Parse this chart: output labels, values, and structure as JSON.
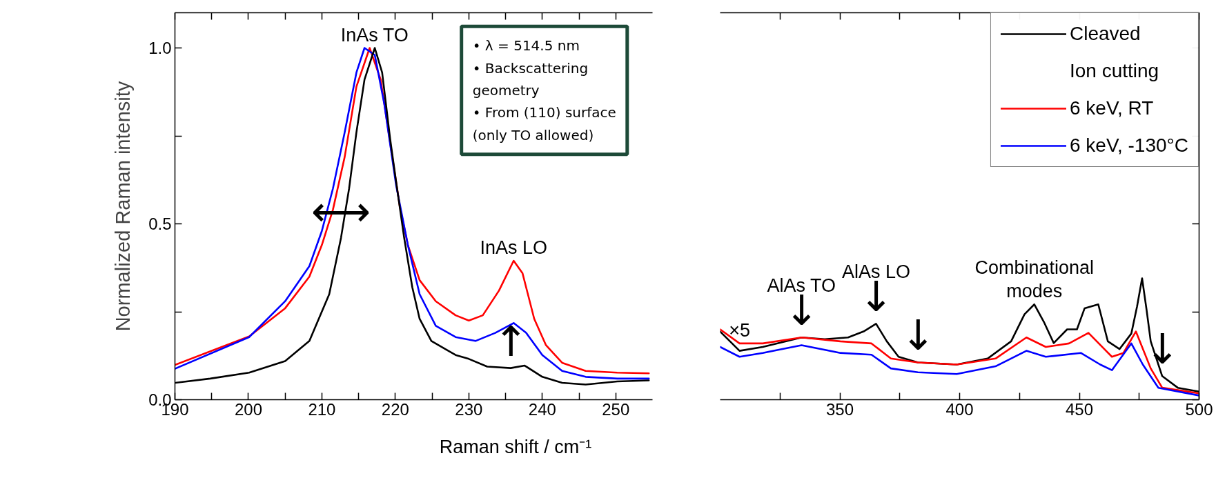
{
  "chart_data": [
    {
      "type": "line",
      "xlabel": "Raman shift / cm⁻¹",
      "ylabel": "Normalized Raman intensity",
      "xlim": [
        190,
        255
      ],
      "ylim": [
        0,
        1.1
      ],
      "xticks": [
        190,
        {
          "value": 195,
          "label": null
        },
        200,
        {
          "value": 205,
          "label": null
        },
        210,
        {
          "value": 215,
          "label": null
        },
        220,
        {
          "value": 225,
          "label": null
        },
        230,
        {
          "value": 235,
          "label": null
        },
        240,
        {
          "value": 245,
          "label": null
        },
        250
      ],
      "yticks": [
        {
          "value": 0,
          "label": "0.0"
        },
        {
          "value": 0.25,
          "label": null
        },
        {
          "value": 0.5,
          "label": "0.5"
        },
        {
          "value": 0.75,
          "label": null
        },
        {
          "value": 1.0,
          "label": "1.0"
        }
      ],
      "series": [
        {
          "color": "#ff0000",
          "x": [
            190,
            200.1,
            205,
            208.3,
            210,
            211.5,
            213.1,
            214.7,
            216.5,
            218,
            219.3,
            220.6,
            221.7,
            223.3,
            225.5,
            228.2,
            230,
            231.9,
            234.1,
            236.1,
            237.3,
            238.9,
            240.5,
            242.7,
            245.9,
            250.2,
            254.5
          ],
          "values": [
            0.099,
            0.18,
            0.26,
            0.35,
            0.44,
            0.54,
            0.69,
            0.89,
            1.0,
            0.91,
            0.73,
            0.55,
            0.44,
            0.34,
            0.28,
            0.24,
            0.225,
            0.24,
            0.31,
            0.395,
            0.36,
            0.23,
            0.155,
            0.105,
            0.082,
            0.077,
            0.075
          ]
        },
        {
          "color": "#0000ff",
          "x": [
            190,
            200.1,
            205,
            208.3,
            210,
            211.5,
            213.1,
            214.7,
            215.8,
            217.2,
            218.5,
            220.1,
            221.7,
            223.3,
            225.5,
            228.2,
            230.9,
            233.6,
            236.1,
            237.8,
            240,
            242.7,
            245.9,
            250.2,
            254.5
          ],
          "values": [
            0.088,
            0.178,
            0.28,
            0.38,
            0.48,
            0.6,
            0.76,
            0.93,
            1.0,
            0.98,
            0.84,
            0.61,
            0.44,
            0.3,
            0.21,
            0.178,
            0.167,
            0.19,
            0.218,
            0.19,
            0.127,
            0.082,
            0.065,
            0.06,
            0.06
          ]
        },
        {
          "color": "#000000",
          "x": [
            190,
            194.8,
            200.1,
            205,
            208.3,
            211,
            212.6,
            213.7,
            214.7,
            215.8,
            217.2,
            218.2,
            219.3,
            220.1,
            221.2,
            222.3,
            223.3,
            224.9,
            228.2,
            230,
            232.5,
            235.7,
            237.6,
            240,
            242.7,
            245.9,
            250.2,
            254.5
          ],
          "values": [
            0.048,
            0.06,
            0.077,
            0.11,
            0.167,
            0.3,
            0.46,
            0.6,
            0.76,
            0.91,
            1.0,
            0.93,
            0.74,
            0.62,
            0.46,
            0.32,
            0.23,
            0.167,
            0.127,
            0.116,
            0.094,
            0.09,
            0.097,
            0.065,
            0.048,
            0.043,
            0.052,
            0.055
          ]
        }
      ],
      "annotations": [
        {
          "text": "InAs TO",
          "x": 217.2,
          "y": 1.0
        },
        {
          "text": "⟷",
          "x": 212.6,
          "y": 0.46
        },
        {
          "text": "↑",
          "x": 235.7,
          "y": 0.09
        },
        {
          "text": "InAs LO",
          "x": 236.1,
          "y": 0.395
        },
        "• λ = 514.5 nm",
        "• Backscattering\n   geometry",
        "• From (110) surface\n   (only TO allowed)"
      ]
    },
    {
      "type": "line",
      "xlim": [
        300,
        500
      ],
      "ylim": [
        0,
        1.1
      ],
      "tick_labels": "x",
      "legend": "top right",
      "legend_title": "Ion cutting",
      "xticks": [
        {
          "value": 325,
          "label": null
        },
        350,
        {
          "value": 375,
          "label": null
        },
        400,
        {
          "value": 425,
          "label": null
        },
        450,
        {
          "value": 475,
          "label": null
        },
        500
      ],
      "yticks": [
        {
          "value": 0,
          "label": null
        },
        {
          "value": 0.25,
          "label": null
        },
        {
          "value": 0.5,
          "label": null
        },
        {
          "value": 0.75,
          "label": null
        },
        {
          "value": 1.0,
          "label": null
        }
      ],
      "series": [
        {
          "name": "Cleaved",
          "color": "#000000",
          "x": [
            300,
            308.1,
            317.8,
            334,
            343.7,
            353.4,
            359.9,
            365.1,
            369.6,
            374.5,
            382.6,
            398.8,
            411.7,
            421.5,
            427.1,
            431.2,
            435.2,
            439.3,
            444.9,
            449,
            452.2,
            457.9,
            461.9,
            466.8,
            471.7,
            474.1,
            476.2,
            478.1,
            479.8,
            484.6,
            491.1,
            500
          ],
          "values": [
            0.194,
            0.139,
            0.15,
            0.177,
            0.172,
            0.177,
            0.194,
            0.216,
            0.166,
            0.122,
            0.106,
            0.1,
            0.117,
            0.166,
            0.243,
            0.271,
            0.221,
            0.161,
            0.2,
            0.2,
            0.26,
            0.271,
            0.166,
            0.144,
            0.188,
            0.265,
            0.345,
            0.254,
            0.166,
            0.067,
            0.034,
            0.023
          ]
        },
        {
          "name": "6 keV, RT",
          "color": "#ff0000",
          "x": [
            300,
            308.1,
            317.8,
            334,
            350.2,
            363.2,
            371.3,
            382.6,
            398.8,
            415,
            427.9,
            436,
            445.7,
            453.8,
            463.6,
            468.4,
            473.6,
            479.8,
            484.6,
            500
          ],
          "values": [
            0.2,
            0.16,
            0.16,
            0.177,
            0.166,
            0.16,
            0.117,
            0.106,
            0.1,
            0.117,
            0.177,
            0.15,
            0.16,
            0.19,
            0.122,
            0.133,
            0.194,
            0.089,
            0.034,
            0.018
          ]
        },
        {
          "name": "6 keV, -130°C",
          "color": "#0000ff",
          "x": [
            300,
            308.1,
            317.8,
            334,
            350.2,
            363.2,
            371.3,
            382.6,
            398.8,
            415,
            427.9,
            436,
            450.6,
            458.7,
            463.6,
            471.7,
            476.5,
            483,
            500
          ],
          "values": [
            0.15,
            0.122,
            0.133,
            0.155,
            0.133,
            0.128,
            0.089,
            0.078,
            0.073,
            0.095,
            0.139,
            0.122,
            0.133,
            0.1,
            0.084,
            0.16,
            0.1,
            0.034,
            0.012
          ]
        }
      ],
      "annotations": [
        {
          "text": "↓",
          "x": 334,
          "y": 0.177
        },
        {
          "text": "AlAs TO",
          "x": 334,
          "y": 0.177
        },
        {
          "text": "↓",
          "x": 365.1,
          "y": 0.216
        },
        {
          "text": "AlAs LO",
          "x": 365.1,
          "y": 0.216
        },
        {
          "text": "↓",
          "x": 382.6,
          "y": 0.106
        },
        {
          "text": "↓",
          "x": 484.6,
          "y": 0.067
        },
        {
          "text": "Combinational\nmodes",
          "x": 431.2,
          "y": 0.271
        },
        {
          "text": "×5",
          "x": 308.1,
          "y": 0.16
        }
      ]
    }
  ]
}
